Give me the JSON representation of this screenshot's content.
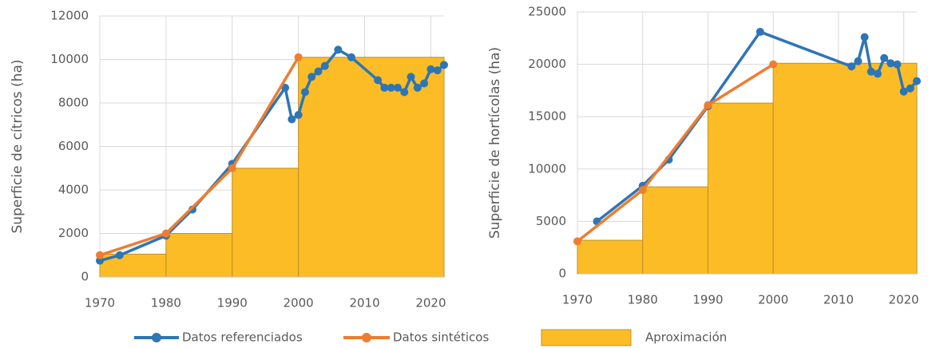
{
  "legend": [
    "Datos referenciados",
    "Datos sintéticos",
    "Aproximación"
  ],
  "chart_data": [
    {
      "type": "line",
      "y_label": "Superficie de cítricos (ha)",
      "xlim": [
        1970,
        2022
      ],
      "xticks": [
        1970,
        1980,
        1990,
        2000,
        2010,
        2020
      ],
      "ylim": [
        0,
        12000
      ],
      "yticks": [
        0,
        2000,
        4000,
        6000,
        8000,
        10000,
        12000
      ],
      "grid": true,
      "series": [
        {
          "type": "histogram",
          "color": "#fbbc26",
          "bins": [
            1970,
            1980,
            1990,
            2000,
            2022
          ],
          "values": [
            1050,
            2000,
            5000,
            10100
          ]
        },
        {
          "type": "line",
          "color": "#2e75b6",
          "x": [
            1970,
            1973,
            1980,
            1984,
            1990,
            1998,
            1999,
            2000,
            2001,
            2002,
            2003,
            2004,
            2006,
            2008,
            2012,
            2013,
            2014,
            2015,
            2016,
            2017,
            2018,
            2019,
            2020,
            2021,
            2022
          ],
          "values": [
            750,
            1000,
            1900,
            3100,
            5200,
            8700,
            7250,
            7450,
            8500,
            9200,
            9450,
            9700,
            10450,
            10100,
            9050,
            8700,
            8700,
            8700,
            8500,
            9200,
            8700,
            8900,
            9550,
            9500,
            9750
          ]
        },
        {
          "type": "line",
          "color": "#ed7d31",
          "x": [
            1970,
            1980,
            1990,
            2000
          ],
          "values": [
            1000,
            2000,
            5000,
            10100
          ]
        }
      ]
    },
    {
      "type": "line",
      "y_label": "Superficie de hortícolas (ha)",
      "xlim": [
        1970,
        2022
      ],
      "xticks": [
        1970,
        1980,
        1990,
        2000,
        2010,
        2020
      ],
      "ylim": [
        0,
        25000
      ],
      "yticks": [
        0,
        5000,
        10000,
        15000,
        20000,
        25000
      ],
      "grid": true,
      "series": [
        {
          "type": "histogram",
          "color": "#fbbc26",
          "bins": [
            1970,
            1980,
            1990,
            2000,
            2022
          ],
          "values": [
            3200,
            8300,
            16300,
            20100
          ]
        },
        {
          "type": "line",
          "color": "#2e75b6",
          "x": [
            1973,
            1980,
            1984,
            1990,
            1998,
            2012,
            2013,
            2014,
            2015,
            2016,
            2017,
            2018,
            2019,
            2020,
            2021,
            2022
          ],
          "values": [
            5000,
            8400,
            10900,
            16000,
            23100,
            19800,
            20300,
            22600,
            19300,
            19100,
            20600,
            20100,
            20000,
            17400,
            17700,
            18400
          ]
        },
        {
          "type": "line",
          "color": "#ed7d31",
          "x": [
            1970,
            1980,
            1990,
            2000
          ],
          "values": [
            3100,
            8000,
            16100,
            20000
          ]
        }
      ]
    }
  ]
}
